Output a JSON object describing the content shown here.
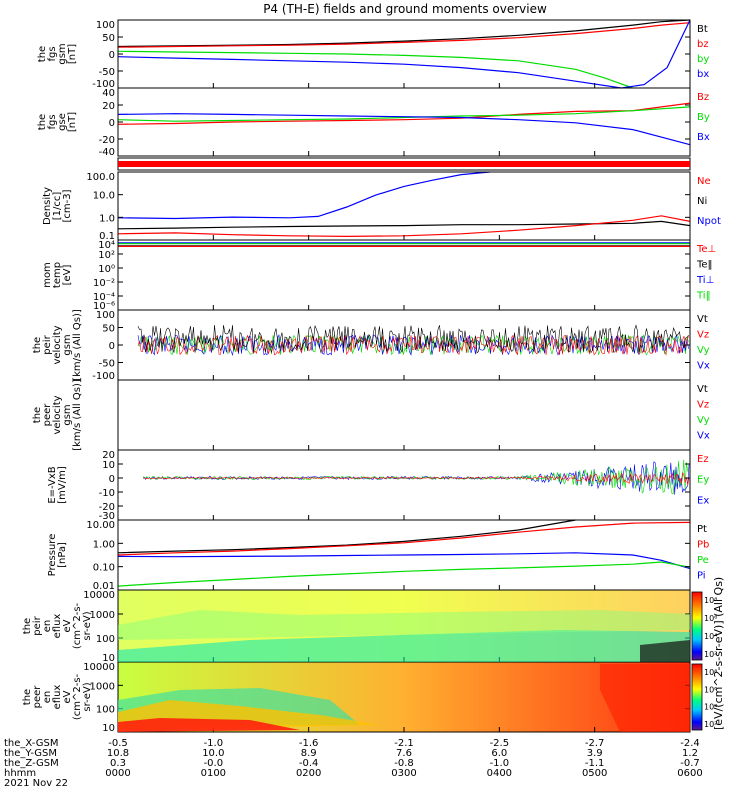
{
  "title": "P4 (TH-E) fields and ground moments overview",
  "colors": {
    "black": "#000000",
    "red": "#ff0000",
    "green": "#00dd00",
    "blue": "#0000ff"
  },
  "chart_data": [
    {
      "type": "line",
      "panel": 1,
      "ylabel_lines": [
        "the",
        "fgs",
        "gsm",
        "[nT]"
      ],
      "ylim": [
        -100,
        100
      ],
      "yticks": [
        "100",
        "50",
        "0",
        "-50",
        "-100"
      ],
      "legend": [
        {
          "name": "Bt",
          "color": "black"
        },
        {
          "name": "bz",
          "color": "red"
        },
        {
          "name": "by",
          "color": "green"
        },
        {
          "name": "bx",
          "color": "blue"
        }
      ],
      "series": [
        {
          "name": "Bt",
          "color": "black",
          "x": [
            0,
            0.1,
            0.2,
            0.3,
            0.4,
            0.5,
            0.6,
            0.7,
            0.8,
            0.9,
            0.95,
            1
          ],
          "y": [
            22,
            24,
            26,
            28,
            32,
            38,
            45,
            55,
            68,
            85,
            95,
            100
          ]
        },
        {
          "name": "bz",
          "color": "red",
          "x": [
            0,
            0.1,
            0.2,
            0.3,
            0.4,
            0.5,
            0.6,
            0.7,
            0.8,
            0.9,
            0.95,
            1
          ],
          "y": [
            20,
            22,
            24,
            26,
            29,
            34,
            40,
            48,
            60,
            75,
            85,
            92
          ]
        },
        {
          "name": "by",
          "color": "green",
          "x": [
            0,
            0.1,
            0.2,
            0.3,
            0.4,
            0.5,
            0.6,
            0.7,
            0.8,
            0.85,
            0.9
          ],
          "y": [
            8,
            6,
            4,
            2,
            0,
            -4,
            -10,
            -20,
            -45,
            -70,
            -100
          ]
        },
        {
          "name": "bx",
          "color": "blue",
          "x": [
            0,
            0.1,
            0.2,
            0.3,
            0.4,
            0.5,
            0.6,
            0.7,
            0.8,
            0.88,
            0.92,
            0.96,
            1
          ],
          "y": [
            -8,
            -12,
            -16,
            -20,
            -24,
            -30,
            -40,
            -55,
            -80,
            -100,
            -90,
            -40,
            100
          ]
        }
      ]
    },
    {
      "type": "line",
      "panel": 2,
      "ylabel_lines": [
        "the",
        "fgs",
        "gse",
        "[nT]"
      ],
      "ylim": [
        -50,
        40
      ],
      "yticks": [
        "40",
        "20",
        "0",
        "-20",
        "-40"
      ],
      "legend": [
        {
          "name": "Bz",
          "color": "red"
        },
        {
          "name": "By",
          "color": "green"
        },
        {
          "name": "Bx",
          "color": "blue"
        }
      ],
      "series": [
        {
          "name": "Bz",
          "color": "red",
          "x": [
            0,
            0.1,
            0.2,
            0.3,
            0.4,
            0.5,
            0.6,
            0.7,
            0.8,
            0.9,
            1
          ],
          "y": [
            -8,
            -7,
            -5,
            -4,
            -3,
            -2,
            0,
            5,
            9,
            10,
            20
          ]
        },
        {
          "name": "By",
          "color": "green",
          "x": [
            0,
            0.1,
            0.2,
            0.3,
            0.4,
            0.5,
            0.6,
            0.7,
            0.8,
            0.9,
            1
          ],
          "y": [
            -2,
            -4,
            -3,
            -2,
            -1,
            1,
            3,
            4,
            6,
            10,
            15
          ]
        },
        {
          "name": "Bx",
          "color": "blue",
          "x": [
            0,
            0.1,
            0.2,
            0.3,
            0.4,
            0.5,
            0.6,
            0.7,
            0.8,
            0.9,
            1
          ],
          "y": [
            5,
            6,
            5,
            4,
            3,
            2,
            1,
            -2,
            -6,
            -15,
            -35
          ]
        }
      ]
    },
    {
      "type": "line",
      "panel": 4,
      "ylabel_lines": [
        "Density",
        "[1/cc]",
        "[cm-3]"
      ],
      "scale": "log",
      "ylim": [
        0.1,
        200
      ],
      "yticks": [
        "100.0",
        "10.0",
        "1.0",
        "0.1"
      ],
      "legend": [
        {
          "name": "Ne",
          "color": "red"
        },
        {
          "name": "Ni",
          "color": "black"
        },
        {
          "name": "Npot",
          "color": "blue"
        }
      ],
      "series": [
        {
          "name": "Npot",
          "color": "blue",
          "x": [
            0,
            0.1,
            0.2,
            0.3,
            0.35,
            0.4,
            0.45,
            0.5,
            0.55,
            0.6,
            0.65
          ],
          "y": [
            1.2,
            1.1,
            1.3,
            1.2,
            1.4,
            4,
            15,
            40,
            80,
            150,
            200
          ]
        },
        {
          "name": "Ni",
          "color": "black",
          "x": [
            0,
            0.1,
            0.2,
            0.3,
            0.4,
            0.5,
            0.6,
            0.7,
            0.8,
            0.9,
            0.95,
            1
          ],
          "y": [
            0.35,
            0.38,
            0.42,
            0.45,
            0.48,
            0.5,
            0.55,
            0.55,
            0.6,
            0.65,
            0.8,
            0.5
          ]
        },
        {
          "name": "Ne",
          "color": "red",
          "x": [
            0,
            0.1,
            0.2,
            0.3,
            0.4,
            0.5,
            0.6,
            0.7,
            0.8,
            0.9,
            0.95,
            1
          ],
          "y": [
            0.2,
            0.22,
            0.18,
            0.16,
            0.15,
            0.16,
            0.2,
            0.3,
            0.5,
            0.9,
            1.5,
            0.8
          ]
        }
      ]
    },
    {
      "type": "line",
      "panel": 5,
      "ylabel_lines": [
        "mom",
        "temp",
        "[eV]"
      ],
      "scale": "log",
      "ylim": [
        1e-06,
        10000
      ],
      "yticks": [
        "10⁴",
        "10²",
        "10⁰",
        "10⁻²",
        "10⁻⁴",
        "10⁻⁶"
      ],
      "legend": [
        {
          "name": "Te⊥",
          "color": "red"
        },
        {
          "name": "Te‖",
          "color": "black"
        },
        {
          "name": "Ti⊥",
          "color": "blue"
        },
        {
          "name": "Ti‖",
          "color": "green"
        }
      ],
      "series": [
        {
          "name": "Ti⊥",
          "color": "blue",
          "x": [
            0,
            1
          ],
          "y": [
            4000,
            4000
          ]
        },
        {
          "name": "Ti‖",
          "color": "green",
          "x": [
            0,
            1
          ],
          "y": [
            3000,
            3000
          ]
        },
        {
          "name": "Te‖",
          "color": "black",
          "x": [
            0,
            1
          ],
          "y": [
            1500,
            1500
          ]
        },
        {
          "name": "Te⊥",
          "color": "red",
          "x": [
            0,
            1
          ],
          "y": [
            1200,
            1200
          ]
        }
      ]
    },
    {
      "type": "line",
      "panel": 6,
      "ylabel_lines": [
        "the",
        "peir",
        "velocity",
        "gsm",
        "[km/s (All Qs)]"
      ],
      "ylim": [
        -100,
        100
      ],
      "yticks": [
        "100",
        "50",
        "0",
        "-50",
        "-100"
      ],
      "legend": [
        {
          "name": "Vt",
          "color": "black"
        },
        {
          "name": "Vz",
          "color": "red"
        },
        {
          "name": "Vy",
          "color": "green"
        },
        {
          "name": "Vx",
          "color": "blue"
        }
      ],
      "series": []
    },
    {
      "type": "line",
      "panel": 7,
      "ylabel_lines": [
        "the",
        "peer",
        "velocity",
        "gsm",
        "[km/s (All Qs)]"
      ],
      "ylim": [
        -100,
        100
      ],
      "yticks": [],
      "legend": [
        {
          "name": "Vt",
          "color": "black"
        },
        {
          "name": "Vz",
          "color": "red"
        },
        {
          "name": "Vy",
          "color": "green"
        },
        {
          "name": "Vx",
          "color": "blue"
        }
      ],
      "series": []
    },
    {
      "type": "line",
      "panel": 8,
      "ylabel_lines": [
        "E=-VxB",
        "[mV/m]"
      ],
      "ylim": [
        -30,
        20
      ],
      "yticks": [
        "20",
        "10",
        "0",
        "-10",
        "-20",
        "-30"
      ],
      "legend": [
        {
          "name": "Ez",
          "color": "red"
        },
        {
          "name": "Ey",
          "color": "green"
        },
        {
          "name": "Ex",
          "color": "blue"
        }
      ],
      "series": []
    },
    {
      "type": "line",
      "panel": 9,
      "ylabel_lines": [
        "Pressure",
        "[nPa]"
      ],
      "scale": "log",
      "ylim": [
        0.003,
        30
      ],
      "yticks": [
        "10.00",
        "1.00",
        "0.10",
        "0.01"
      ],
      "legend": [
        {
          "name": "Pt",
          "color": "black"
        },
        {
          "name": "Pb",
          "color": "red"
        },
        {
          "name": "Pe",
          "color": "green"
        },
        {
          "name": "Pi",
          "color": "blue"
        }
      ],
      "series": [
        {
          "name": "Pt",
          "color": "black",
          "x": [
            0,
            0.1,
            0.2,
            0.3,
            0.4,
            0.5,
            0.6,
            0.7,
            0.8
          ],
          "y": [
            0.4,
            0.5,
            0.6,
            0.8,
            1.1,
            1.8,
            3.5,
            8,
            30
          ]
        },
        {
          "name": "Pb",
          "color": "red",
          "x": [
            0,
            0.1,
            0.2,
            0.3,
            0.4,
            0.5,
            0.6,
            0.7,
            0.8,
            0.9,
            1
          ],
          "y": [
            0.3,
            0.4,
            0.5,
            0.7,
            1.0,
            1.5,
            2.8,
            6,
            12,
            20,
            22
          ]
        },
        {
          "name": "Pi",
          "color": "blue",
          "x": [
            0,
            0.1,
            0.2,
            0.3,
            0.4,
            0.5,
            0.6,
            0.7,
            0.8,
            0.9,
            0.95,
            1
          ],
          "y": [
            0.25,
            0.24,
            0.25,
            0.26,
            0.28,
            0.3,
            0.32,
            0.35,
            0.4,
            0.3,
            0.15,
            0.05
          ]
        },
        {
          "name": "Pe",
          "color": "green",
          "x": [
            0,
            0.1,
            0.2,
            0.3,
            0.4,
            0.5,
            0.6,
            0.7,
            0.8,
            0.9,
            0.95,
            1
          ],
          "y": [
            0.005,
            0.008,
            0.012,
            0.018,
            0.025,
            0.035,
            0.045,
            0.055,
            0.07,
            0.09,
            0.12,
            0.06
          ]
        }
      ]
    },
    {
      "type": "heatmap",
      "panel": 10,
      "ylabel_lines": [
        "the",
        "peir",
        "en",
        "eflux",
        "eV",
        "(cm^2-s-",
        "sr-eV)"
      ],
      "scale": "log",
      "ylim": [
        7,
        20000
      ],
      "yticks": [
        "10000",
        "1000",
        "100",
        "10"
      ],
      "colorbar_ticks": [
        "10⁸",
        "10⁶",
        "10⁴",
        "10²"
      ]
    },
    {
      "type": "heatmap",
      "panel": 11,
      "ylabel_lines": [
        "the",
        "peer",
        "en",
        "eflux",
        "eV",
        "(cm^2-s-",
        "sr-eV)"
      ],
      "scale": "log",
      "ylim": [
        7,
        20000
      ],
      "yticks": [
        "10000",
        "1000",
        "100",
        "10"
      ],
      "colorbar_ticks": [
        "10⁸",
        "10⁶",
        "10⁴",
        "10²"
      ]
    }
  ],
  "colorbar_label": "[eV/(cm^2-s-sr-eV)] (All Qs)",
  "xaxis": {
    "row_labels": [
      "the_X-GSM",
      "the_Y-GSM",
      "the_Z-GSM",
      "hhmm",
      "2021 Nov 22"
    ],
    "columns": [
      [
        "-0.5",
        "10.8",
        "0.3",
        "0000"
      ],
      [
        "-1.0",
        "10.0",
        "-0.0",
        "0100"
      ],
      [
        "-1.6",
        "8.9",
        "-0.4",
        "0200"
      ],
      [
        "-2.1",
        "7.6",
        "-0.8",
        "0300"
      ],
      [
        "-2.5",
        "6.0",
        "-1.0",
        "0400"
      ],
      [
        "-2.7",
        "3.9",
        "-1.1",
        "0500"
      ],
      [
        "-2.4",
        "1.2",
        "-0.7",
        "0600"
      ]
    ]
  }
}
